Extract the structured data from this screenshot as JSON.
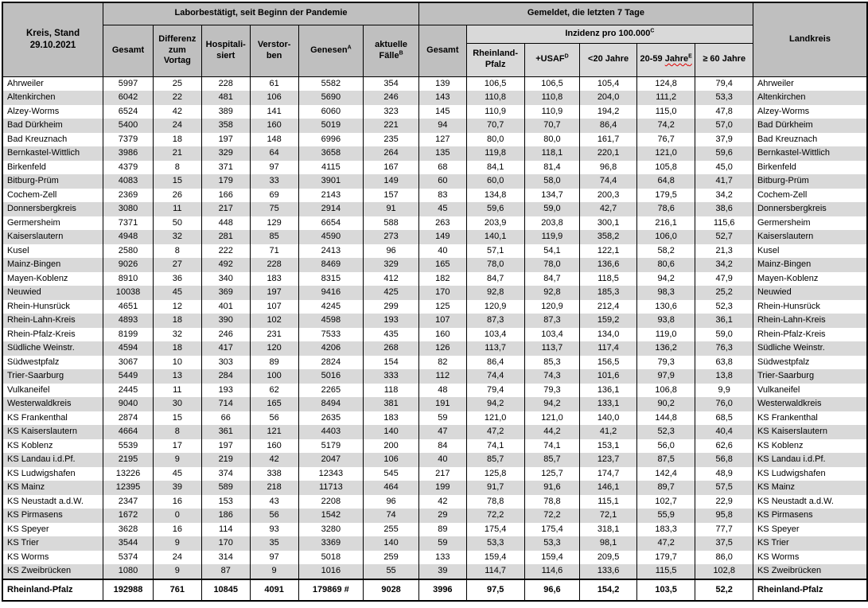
{
  "colors": {
    "header_dark": "#bfbfbf",
    "header_light": "#d9d9d9",
    "row_alt": "#d9d9d9",
    "border": "#000000",
    "squiggle": "#e00000"
  },
  "title_cell": "Kreis, Stand\n29.10.2021",
  "header": {
    "group_left": "Laborbestätigt, seit Beginn der Pandemie",
    "group_right": "Gemeldet, die letzten 7 Tage",
    "landkreis": "Landkreis",
    "cols_left": [
      {
        "label": "Gesamt"
      },
      {
        "label": "Differenz zum Vortag"
      },
      {
        "label": "Hospitali-siert"
      },
      {
        "label": "Verstor-ben"
      },
      {
        "label": "Genesen",
        "sup": "A"
      },
      {
        "label": "aktuelle Fälle",
        "sup": "B"
      }
    ],
    "gesamt7": "Gesamt",
    "inzidenz": {
      "label": "Inzidenz pro 100.000",
      "sup": "C"
    },
    "cols_inzidenz": [
      {
        "label": "Rheinland-Pfalz"
      },
      {
        "label": "+USAF",
        "sup": "D"
      },
      {
        "label": "<20 Jahre"
      },
      {
        "prefix": "20-59 ",
        "wavy_part": "Jahre",
        "sup": "E"
      },
      {
        "label": "≥ 60 Jahre"
      }
    ]
  },
  "rows": [
    [
      "Ahrweiler",
      "5997",
      "25",
      "228",
      "61",
      "5582",
      "354",
      "139",
      "106,5",
      "106,5",
      "105,4",
      "124,8",
      "79,4",
      "Ahrweiler"
    ],
    [
      "Altenkirchen",
      "6042",
      "22",
      "481",
      "106",
      "5690",
      "246",
      "143",
      "110,8",
      "110,8",
      "204,0",
      "111,2",
      "53,3",
      "Altenkirchen"
    ],
    [
      "Alzey-Worms",
      "6524",
      "42",
      "389",
      "141",
      "6060",
      "323",
      "145",
      "110,9",
      "110,9",
      "194,2",
      "115,0",
      "47,8",
      "Alzey-Worms"
    ],
    [
      "Bad Dürkheim",
      "5400",
      "24",
      "358",
      "160",
      "5019",
      "221",
      "94",
      "70,7",
      "70,7",
      "86,4",
      "74,2",
      "57,0",
      "Bad Dürkheim"
    ],
    [
      "Bad Kreuznach",
      "7379",
      "18",
      "197",
      "148",
      "6996",
      "235",
      "127",
      "80,0",
      "80,0",
      "161,7",
      "76,7",
      "37,9",
      "Bad Kreuznach"
    ],
    [
      "Bernkastel-Wittlich",
      "3986",
      "21",
      "329",
      "64",
      "3658",
      "264",
      "135",
      "119,8",
      "118,1",
      "220,1",
      "121,0",
      "59,6",
      "Bernkastel-Wittlich"
    ],
    [
      "Birkenfeld",
      "4379",
      "8",
      "371",
      "97",
      "4115",
      "167",
      "68",
      "84,1",
      "81,4",
      "96,8",
      "105,8",
      "45,0",
      "Birkenfeld"
    ],
    [
      "Bitburg-Prüm",
      "4083",
      "15",
      "179",
      "33",
      "3901",
      "149",
      "60",
      "60,0",
      "58,0",
      "74,4",
      "64,8",
      "41,7",
      "Bitburg-Prüm"
    ],
    [
      "Cochem-Zell",
      "2369",
      "26",
      "166",
      "69",
      "2143",
      "157",
      "83",
      "134,8",
      "134,7",
      "200,3",
      "179,5",
      "34,2",
      "Cochem-Zell"
    ],
    [
      "Donnersbergkreis",
      "3080",
      "11",
      "217",
      "75",
      "2914",
      "91",
      "45",
      "59,6",
      "59,0",
      "42,7",
      "78,6",
      "38,6",
      "Donnersbergkreis"
    ],
    [
      "Germersheim",
      "7371",
      "50",
      "448",
      "129",
      "6654",
      "588",
      "263",
      "203,9",
      "203,8",
      "300,1",
      "216,1",
      "115,6",
      "Germersheim"
    ],
    [
      "Kaiserslautern",
      "4948",
      "32",
      "281",
      "85",
      "4590",
      "273",
      "149",
      "140,1",
      "119,9",
      "358,2",
      "106,0",
      "52,7",
      "Kaiserslautern"
    ],
    [
      "Kusel",
      "2580",
      "8",
      "222",
      "71",
      "2413",
      "96",
      "40",
      "57,1",
      "54,1",
      "122,1",
      "58,2",
      "21,3",
      "Kusel"
    ],
    [
      "Mainz-Bingen",
      "9026",
      "27",
      "492",
      "228",
      "8469",
      "329",
      "165",
      "78,0",
      "78,0",
      "136,6",
      "80,6",
      "34,2",
      "Mainz-Bingen"
    ],
    [
      "Mayen-Koblenz",
      "8910",
      "36",
      "340",
      "183",
      "8315",
      "412",
      "182",
      "84,7",
      "84,7",
      "118,5",
      "94,2",
      "47,9",
      "Mayen-Koblenz"
    ],
    [
      "Neuwied",
      "10038",
      "45",
      "369",
      "197",
      "9416",
      "425",
      "170",
      "92,8",
      "92,8",
      "185,3",
      "98,3",
      "25,2",
      "Neuwied"
    ],
    [
      "Rhein-Hunsrück",
      "4651",
      "12",
      "401",
      "107",
      "4245",
      "299",
      "125",
      "120,9",
      "120,9",
      "212,4",
      "130,6",
      "52,3",
      "Rhein-Hunsrück"
    ],
    [
      "Rhein-Lahn-Kreis",
      "4893",
      "18",
      "390",
      "102",
      "4598",
      "193",
      "107",
      "87,3",
      "87,3",
      "159,2",
      "93,8",
      "36,1",
      "Rhein-Lahn-Kreis"
    ],
    [
      "Rhein-Pfalz-Kreis",
      "8199",
      "32",
      "246",
      "231",
      "7533",
      "435",
      "160",
      "103,4",
      "103,4",
      "134,0",
      "119,0",
      "59,0",
      "Rhein-Pfalz-Kreis"
    ],
    [
      "Südliche Weinstr.",
      "4594",
      "18",
      "417",
      "120",
      "4206",
      "268",
      "126",
      "113,7",
      "113,7",
      "117,4",
      "136,2",
      "76,3",
      "Südliche Weinstr."
    ],
    [
      "Südwestpfalz",
      "3067",
      "10",
      "303",
      "89",
      "2824",
      "154",
      "82",
      "86,4",
      "85,3",
      "156,5",
      "79,3",
      "63,8",
      "Südwestpfalz"
    ],
    [
      "Trier-Saarburg",
      "5449",
      "13",
      "284",
      "100",
      "5016",
      "333",
      "112",
      "74,4",
      "74,3",
      "101,6",
      "97,9",
      "13,8",
      "Trier-Saarburg"
    ],
    [
      "Vulkaneifel",
      "2445",
      "11",
      "193",
      "62",
      "2265",
      "118",
      "48",
      "79,4",
      "79,3",
      "136,1",
      "106,8",
      "9,9",
      "Vulkaneifel"
    ],
    [
      "Westerwaldkreis",
      "9040",
      "30",
      "714",
      "165",
      "8494",
      "381",
      "191",
      "94,2",
      "94,2",
      "133,1",
      "90,2",
      "76,0",
      "Westerwaldkreis"
    ],
    [
      "KS Frankenthal",
      "2874",
      "15",
      "66",
      "56",
      "2635",
      "183",
      "59",
      "121,0",
      "121,0",
      "140,0",
      "144,8",
      "68,5",
      "KS Frankenthal"
    ],
    [
      "KS Kaiserslautern",
      "4664",
      "8",
      "361",
      "121",
      "4403",
      "140",
      "47",
      "47,2",
      "44,2",
      "41,2",
      "52,3",
      "40,4",
      "KS Kaiserslautern"
    ],
    [
      "KS Koblenz",
      "5539",
      "17",
      "197",
      "160",
      "5179",
      "200",
      "84",
      "74,1",
      "74,1",
      "153,1",
      "56,0",
      "62,6",
      "KS Koblenz"
    ],
    [
      "KS Landau i.d.Pf.",
      "2195",
      "9",
      "219",
      "42",
      "2047",
      "106",
      "40",
      "85,7",
      "85,7",
      "123,7",
      "87,5",
      "56,8",
      "KS Landau i.d.Pf."
    ],
    [
      "KS Ludwigshafen",
      "13226",
      "45",
      "374",
      "338",
      "12343",
      "545",
      "217",
      "125,8",
      "125,7",
      "174,7",
      "142,4",
      "48,9",
      "KS Ludwigshafen"
    ],
    [
      "KS Mainz",
      "12395",
      "39",
      "589",
      "218",
      "11713",
      "464",
      "199",
      "91,7",
      "91,6",
      "146,1",
      "89,7",
      "57,5",
      "KS Mainz"
    ],
    [
      "KS Neustadt a.d.W.",
      "2347",
      "16",
      "153",
      "43",
      "2208",
      "96",
      "42",
      "78,8",
      "78,8",
      "115,1",
      "102,7",
      "22,9",
      "KS Neustadt a.d.W."
    ],
    [
      "KS Pirmasens",
      "1672",
      "0",
      "186",
      "56",
      "1542",
      "74",
      "29",
      "72,2",
      "72,2",
      "72,1",
      "55,9",
      "95,8",
      "KS Pirmasens"
    ],
    [
      "KS Speyer",
      "3628",
      "16",
      "114",
      "93",
      "3280",
      "255",
      "89",
      "175,4",
      "175,4",
      "318,1",
      "183,3",
      "77,7",
      "KS Speyer"
    ],
    [
      "KS Trier",
      "3544",
      "9",
      "170",
      "35",
      "3369",
      "140",
      "59",
      "53,3",
      "53,3",
      "98,1",
      "47,2",
      "37,5",
      "KS Trier"
    ],
    [
      "KS Worms",
      "5374",
      "24",
      "314",
      "97",
      "5018",
      "259",
      "133",
      "159,4",
      "159,4",
      "209,5",
      "179,7",
      "86,0",
      "KS Worms"
    ],
    [
      "KS Zweibrücken",
      "1080",
      "9",
      "87",
      "9",
      "1016",
      "55",
      "39",
      "114,7",
      "114,6",
      "133,6",
      "115,5",
      "102,8",
      "KS Zweibrücken"
    ]
  ],
  "total_row": [
    "Rheinland-Pfalz",
    "192988",
    "761",
    "10845",
    "4091",
    "179869 #",
    "9028",
    "3996",
    "97,5",
    "96,6",
    "154,2",
    "103,5",
    "52,2",
    "Rheinland-Pfalz"
  ]
}
